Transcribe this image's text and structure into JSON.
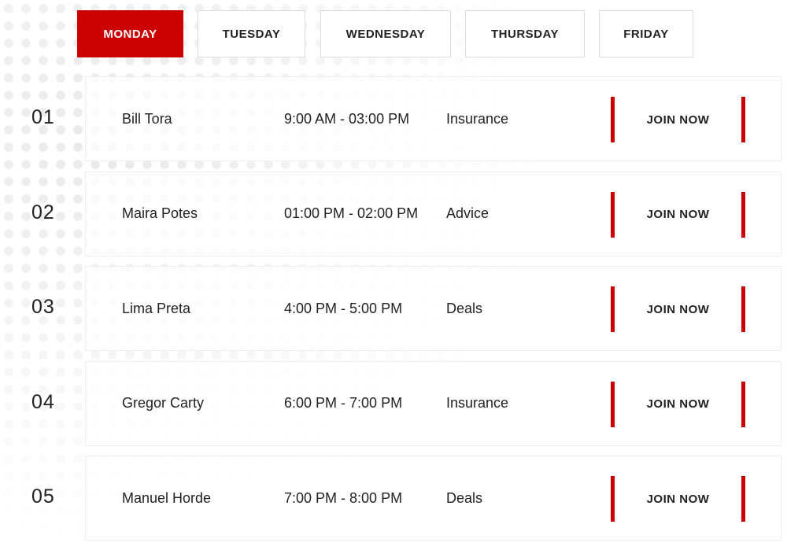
{
  "tabs": [
    {
      "label": "MONDAY",
      "active": true
    },
    {
      "label": "TUESDAY",
      "active": false
    },
    {
      "label": "WEDNESDAY",
      "active": false
    },
    {
      "label": "THURSDAY",
      "active": false
    },
    {
      "label": "FRIDAY",
      "active": false
    }
  ],
  "accent_color": "#cc0000",
  "join_label": "JOIN NOW",
  "rows": [
    {
      "num": "01",
      "name": "Bill Tora",
      "time": "9:00 AM - 03:00 PM",
      "topic": "Insurance"
    },
    {
      "num": "02",
      "name": "Maira Potes",
      "time": "01:00 PM - 02:00 PM",
      "topic": "Advice"
    },
    {
      "num": "03",
      "name": "Lima Preta",
      "time": "4:00 PM - 5:00 PM",
      "topic": "Deals"
    },
    {
      "num": "04",
      "name": "Gregor Carty",
      "time": "6:00 PM - 7:00 PM",
      "topic": "Insurance"
    },
    {
      "num": "05",
      "name": "Manuel Horde",
      "time": "7:00 PM - 8:00 PM",
      "topic": "Deals"
    }
  ]
}
